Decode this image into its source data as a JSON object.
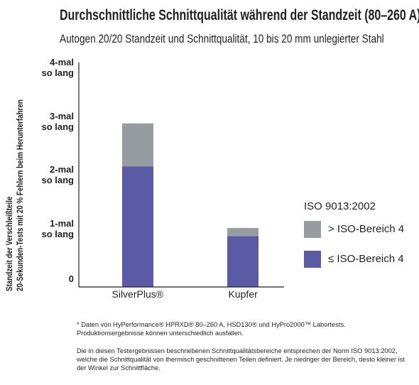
{
  "title": "Durchschnittliche Schnittqualität während der Standzeit (80–260 A)*",
  "subtitle": "Autogen 20/20 Standzeit und Schnittqualität, 10 bis 20 mm unlegierter Stahl",
  "chart_data": {
    "type": "bar",
    "stacked": true,
    "categories": [
      "SilverPlus®",
      "Kupfer"
    ],
    "series": [
      {
        "name": "≤ ISO-Bereich 4",
        "color": "#5b5ba5",
        "values": [
          2.25,
          0.95
        ]
      },
      {
        "name": "> ISO-Bereich 4",
        "color": "#979ca1",
        "values": [
          0.8,
          0.15
        ]
      }
    ],
    "ylabel_lines": [
      "Standzeit der Verschleißteile",
      "20-Sekunden-Tests mit 20 % Fehlern beim Herunterfahren"
    ],
    "yticks": [
      {
        "value": 0,
        "label": [
          "0"
        ]
      },
      {
        "value": 1,
        "label": [
          "1-mal",
          "so lang"
        ]
      },
      {
        "value": 2,
        "label": [
          "2-mal",
          "so lang"
        ]
      },
      {
        "value": 3,
        "label": [
          "3-mal",
          "so lang"
        ]
      },
      {
        "value": 4,
        "label": [
          "4-mal",
          "so lang"
        ]
      }
    ],
    "ylim": [
      0,
      4.2
    ],
    "grid": false,
    "legend_title": "ISO 9013:2002",
    "legend_position": "right"
  },
  "notes": [
    "* Daten von HyPerformance® HPRXD® 80–260 A, HSD130® und HyPro2000™ Labortests. Produktionsergebnisse können unterschiedlich ausfallen.",
    "Die in diesen Testergebnissen beschriebenen Schnittqualitätsbereiche entsprechen der Norm ISO 9013:2002, welche die Schnittqualität von thermisch geschnittenen Teilen definiert. Je niedriger der Bereich, desto kleiner ist der Winkel zur Schnittfläche."
  ]
}
